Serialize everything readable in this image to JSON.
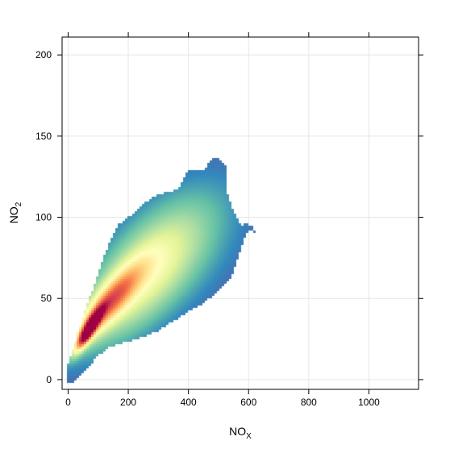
{
  "chart_data": {
    "type": "heatmap",
    "subtype": "2d-density",
    "x_axis": {
      "label_base": "NO",
      "label_sub": "X",
      "range": [
        -20,
        1165
      ],
      "ticks": [
        0,
        200,
        400,
        600,
        800,
        1000
      ]
    },
    "y_axis": {
      "label_base": "NO",
      "label_sub": "2",
      "range": [
        -6,
        211
      ],
      "ticks": [
        0,
        50,
        100,
        150,
        200
      ]
    },
    "grid": true,
    "density_boundary": [
      [
        -2,
        -2
      ],
      [
        18,
        -2
      ],
      [
        40,
        2
      ],
      [
        58,
        5
      ],
      [
        78,
        10
      ],
      [
        100,
        15
      ],
      [
        140,
        20
      ],
      [
        190,
        23
      ],
      [
        250,
        26
      ],
      [
        300,
        30
      ],
      [
        350,
        36
      ],
      [
        400,
        42
      ],
      [
        440,
        46
      ],
      [
        470,
        50
      ],
      [
        500,
        55
      ],
      [
        540,
        62
      ],
      [
        560,
        72
      ],
      [
        570,
        78
      ],
      [
        580,
        84
      ],
      [
        590,
        89
      ],
      [
        605,
        92
      ],
      [
        622,
        90
      ],
      [
        615,
        94
      ],
      [
        595,
        96
      ],
      [
        575,
        95
      ],
      [
        560,
        100
      ],
      [
        550,
        104
      ],
      [
        537,
        110
      ],
      [
        530,
        115
      ],
      [
        527,
        124
      ],
      [
        524,
        132
      ],
      [
        515,
        134
      ],
      [
        500,
        136
      ],
      [
        480,
        136
      ],
      [
        465,
        133
      ],
      [
        450,
        129
      ],
      [
        400,
        129
      ],
      [
        370,
        118
      ],
      [
        340,
        116
      ],
      [
        295,
        114
      ],
      [
        250,
        108
      ],
      [
        200,
        100
      ],
      [
        165,
        95
      ],
      [
        140,
        86
      ],
      [
        100,
        66
      ],
      [
        60,
        44
      ],
      [
        40,
        34
      ],
      [
        20,
        21
      ],
      [
        0,
        10
      ],
      [
        -2,
        18
      ]
    ],
    "density_peaks": [
      {
        "x": 70,
        "y": 31,
        "sx": 28,
        "sy": 8,
        "rho": 0.85,
        "weight": 1.0
      },
      {
        "x": 130,
        "y": 46,
        "sx": 75,
        "sy": 16,
        "rho": 0.85,
        "weight": 0.55
      },
      {
        "x": 230,
        "y": 60,
        "sx": 140,
        "sy": 28,
        "rho": 0.7,
        "weight": 0.32
      },
      {
        "x": 340,
        "y": 80,
        "sx": 170,
        "sy": 32,
        "rho": 0.45,
        "weight": 0.14
      }
    ],
    "colorscale": [
      "#5e4fa2",
      "#3288bd",
      "#66c2a5",
      "#abdda4",
      "#e6f598",
      "#ffffbf",
      "#fee08b",
      "#fdae61",
      "#f46d43",
      "#d53e4f",
      "#9e0142"
    ]
  }
}
